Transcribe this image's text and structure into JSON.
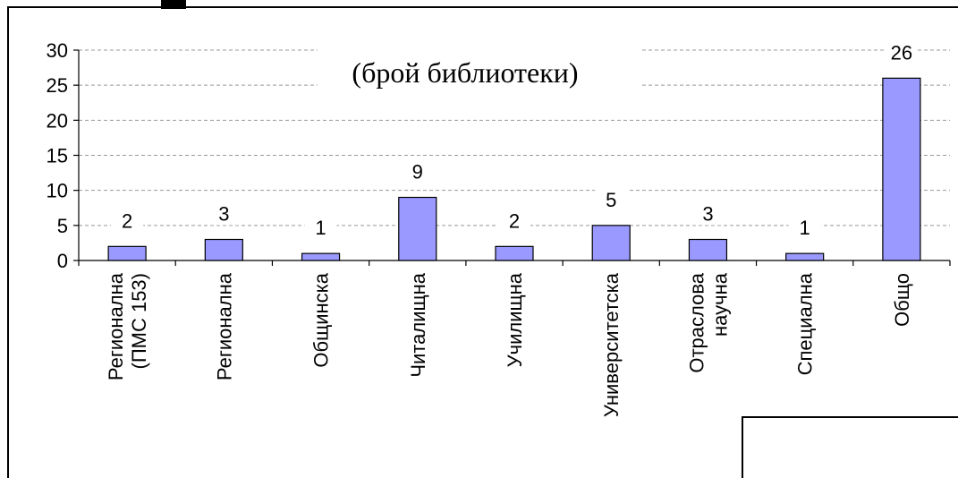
{
  "chart_data": {
    "type": "bar",
    "title": "(брой библиотеки)",
    "categories": [
      "Регионална\n(ПМС 153)",
      "Регионална",
      "Общинска",
      "Читалищна",
      "Училищна",
      "Университетска",
      "Отраслова\nнаучна",
      "Специална",
      "Общо"
    ],
    "values": [
      2,
      3,
      1,
      9,
      2,
      5,
      3,
      1,
      26
    ],
    "color": "#9999ff",
    "ylim": [
      0,
      30
    ],
    "yticks": [
      0,
      5,
      10,
      15,
      20,
      25,
      30
    ],
    "grid": true
  }
}
